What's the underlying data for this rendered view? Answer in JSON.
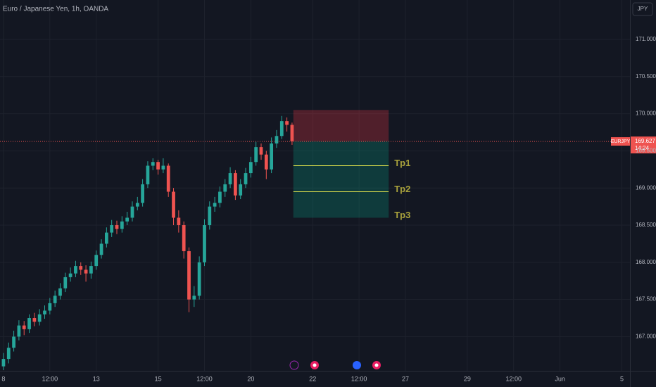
{
  "header": {
    "title": "Euro / Japanese Yen, 1h, OANDA",
    "currency": "JPY"
  },
  "chart_data": {
    "type": "candlestick",
    "x": [
      0,
      4,
      8,
      12,
      16,
      20,
      24,
      28,
      32,
      36,
      40,
      44,
      48,
      52,
      56,
      60,
      64,
      68,
      72,
      76,
      80,
      84,
      88,
      92,
      96,
      100,
      104,
      108,
      112,
      116,
      120,
      124,
      128,
      132,
      136,
      140,
      144,
      148,
      152,
      156,
      160,
      164,
      168,
      172,
      176,
      180,
      184,
      188,
      192,
      196,
      200,
      204,
      208,
      212,
      216,
      220,
      224
    ],
    "open": [
      166.6,
      166.7,
      166.85,
      167.0,
      167.15,
      167.1,
      167.25,
      167.2,
      167.3,
      167.35,
      167.45,
      167.55,
      167.65,
      167.8,
      167.85,
      167.95,
      167.9,
      167.85,
      167.95,
      168.1,
      168.25,
      168.4,
      168.5,
      168.45,
      168.55,
      168.6,
      168.75,
      168.8,
      169.05,
      169.3,
      169.35,
      169.25,
      169.3,
      168.95,
      168.6,
      168.5,
      168.15,
      167.5,
      167.55,
      168.0,
      168.5,
      168.75,
      168.8,
      168.95,
      169.05,
      169.2,
      168.9,
      169.05,
      169.2,
      169.35,
      169.55,
      169.45,
      169.25,
      169.6,
      169.7,
      169.9,
      169.85
    ],
    "high": [
      166.78,
      166.92,
      167.08,
      167.22,
      167.21,
      167.3,
      167.32,
      167.37,
      167.42,
      167.52,
      167.62,
      167.72,
      167.86,
      167.93,
      168.02,
      168.0,
      167.96,
      168.01,
      168.16,
      168.31,
      168.47,
      168.57,
      168.56,
      168.62,
      168.68,
      168.82,
      168.88,
      169.12,
      169.36,
      169.4,
      169.38,
      169.4,
      169.33,
      169.0,
      168.7,
      168.55,
      168.2,
      167.68,
      168.08,
      168.58,
      168.82,
      168.88,
      169.02,
      169.12,
      169.28,
      169.24,
      169.12,
      169.27,
      169.42,
      169.62,
      169.6,
      169.5,
      169.68,
      169.78,
      169.97,
      169.95,
      169.88
    ],
    "low": [
      166.55,
      166.64,
      166.8,
      166.95,
      167.02,
      167.05,
      167.14,
      167.15,
      167.24,
      167.3,
      167.4,
      167.5,
      167.6,
      167.74,
      167.8,
      167.83,
      167.74,
      167.78,
      167.9,
      168.05,
      168.2,
      168.34,
      168.38,
      168.4,
      168.5,
      168.55,
      168.7,
      168.75,
      169.0,
      169.24,
      169.18,
      169.2,
      168.88,
      168.5,
      168.4,
      168.05,
      167.33,
      167.4,
      167.5,
      167.95,
      168.44,
      168.68,
      168.74,
      168.88,
      169.0,
      168.84,
      168.85,
      169.0,
      169.14,
      169.3,
      169.38,
      169.12,
      169.2,
      169.54,
      169.66,
      169.76,
      169.58
    ],
    "close": [
      166.7,
      166.85,
      167.0,
      167.15,
      167.1,
      167.25,
      167.2,
      167.3,
      167.35,
      167.45,
      167.55,
      167.65,
      167.8,
      167.85,
      167.95,
      167.9,
      167.85,
      167.95,
      168.1,
      168.25,
      168.4,
      168.5,
      168.45,
      168.55,
      168.6,
      168.75,
      168.8,
      169.05,
      169.3,
      169.35,
      169.25,
      169.3,
      168.95,
      168.6,
      168.5,
      168.15,
      167.5,
      167.55,
      168.0,
      168.5,
      168.75,
      168.8,
      168.95,
      169.05,
      169.2,
      168.9,
      169.05,
      169.2,
      169.35,
      169.55,
      169.45,
      169.25,
      169.6,
      169.7,
      169.9,
      169.85,
      169.63
    ],
    "up_color": "#26a69a",
    "down_color": "#ef5350",
    "xlim": [
      -2.7,
      486.3
    ],
    "ylim": [
      166.54,
      171.53
    ],
    "xticks": [
      {
        "value": 0,
        "label": "8"
      },
      {
        "value": 36,
        "label": "12:00"
      },
      {
        "value": 72,
        "label": "13"
      },
      {
        "value": 120,
        "label": "15"
      },
      {
        "value": 156,
        "label": "12:00"
      },
      {
        "value": 192,
        "label": "20"
      },
      {
        "value": 240,
        "label": "22"
      },
      {
        "value": 276,
        "label": "12:00"
      },
      {
        "value": 312,
        "label": "27"
      },
      {
        "value": 360,
        "label": "29"
      },
      {
        "value": 396,
        "label": "12:00"
      },
      {
        "value": 432,
        "label": "Jun"
      },
      {
        "value": 480,
        "label": "5"
      }
    ],
    "yticks": [
      {
        "value": 167,
        "label": "167.000"
      },
      {
        "value": 167.5,
        "label": "167.500"
      },
      {
        "value": 168,
        "label": "168.000"
      },
      {
        "value": 168.5,
        "label": "168.500"
      },
      {
        "value": 169,
        "label": "169.000"
      },
      {
        "value": 169.5,
        "label": "169.500"
      },
      {
        "value": 170,
        "label": "170.000"
      },
      {
        "value": 170.5,
        "label": "170.500"
      },
      {
        "value": 171,
        "label": "171.000"
      }
    ],
    "grid": true,
    "symbol": "EURJPY",
    "last_price": 169.627,
    "countdown": "14:24",
    "position": {
      "x_range": [
        225,
        299
      ],
      "stop": 170.05,
      "entry": 169.63,
      "targets": [
        {
          "label": "Tp1",
          "value": 169.3
        },
        {
          "label": "Tp2",
          "value": 168.95
        },
        {
          "label": "Tp3",
          "value": 168.6
        }
      ]
    }
  }
}
